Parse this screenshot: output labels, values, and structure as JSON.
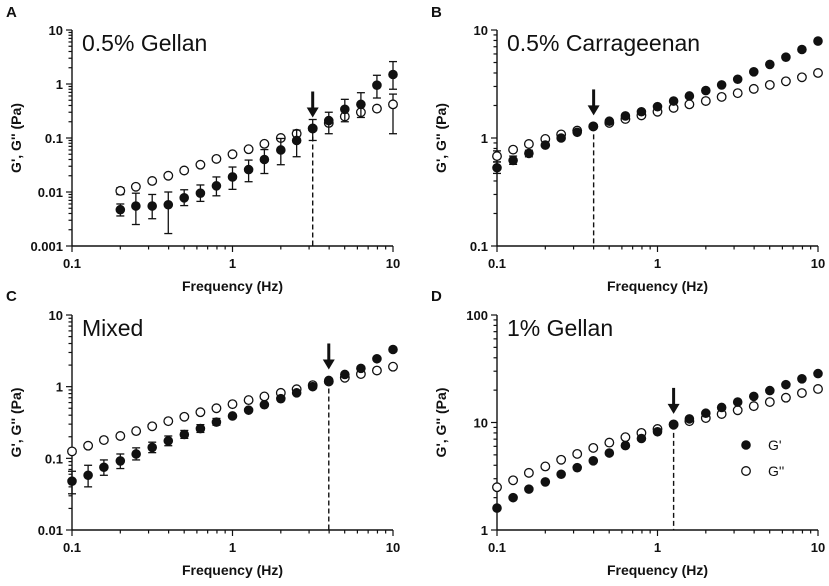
{
  "chart_data": [
    {
      "type": "scatter",
      "panel_label": "A",
      "title": "0.5% Gellan",
      "xlabel": "Frequency (Hz)",
      "ylabel": "G', G'' (Pa)",
      "xscale": "log",
      "yscale": "log",
      "xlim": [
        0.1,
        10
      ],
      "ylim": [
        0.001,
        10
      ],
      "xtick_labels": [
        "0.1",
        "1",
        "10"
      ],
      "ytick_labels": [
        "0.001",
        "0.01",
        "0.1",
        "1",
        "10"
      ],
      "crossover_frequency": 3.16,
      "series": [
        {
          "name": "G'",
          "marker": "filled",
          "x": [
            0.2,
            0.25,
            0.316,
            0.398,
            0.5,
            0.631,
            0.794,
            1.0,
            1.26,
            1.58,
            2.0,
            2.51,
            3.16,
            3.98,
            5.01,
            6.31,
            7.94,
            10.0
          ],
          "y": [
            0.0047,
            0.0055,
            0.0055,
            0.0058,
            0.0078,
            0.0095,
            0.013,
            0.019,
            0.026,
            0.04,
            0.06,
            0.09,
            0.15,
            0.21,
            0.34,
            0.42,
            0.95,
            1.5
          ],
          "err_low": [
            0.0036,
            0.0025,
            0.0032,
            0.0017,
            0.0056,
            0.0067,
            0.0085,
            0.0112,
            0.0155,
            0.022,
            0.032,
            0.045,
            0.09,
            0.12,
            0.2,
            0.24,
            0.55,
            0.8
          ],
          "err_high": [
            0.006,
            0.0095,
            0.009,
            0.01,
            0.011,
            0.0135,
            0.019,
            0.029,
            0.039,
            0.061,
            0.098,
            0.14,
            0.22,
            0.3,
            0.52,
            0.69,
            1.45,
            2.6
          ]
        },
        {
          "name": "G''",
          "marker": "open",
          "x": [
            0.2,
            0.25,
            0.316,
            0.398,
            0.5,
            0.631,
            0.794,
            1.0,
            1.26,
            1.58,
            2.0,
            2.51,
            3.16,
            3.98,
            5.01,
            6.31,
            7.94,
            10.0
          ],
          "y": [
            0.0105,
            0.0125,
            0.016,
            0.02,
            0.025,
            0.032,
            0.041,
            0.05,
            0.062,
            0.078,
            0.1,
            0.12,
            0.15,
            0.19,
            0.25,
            0.3,
            0.35,
            0.42
          ],
          "err_low": [
            0.009,
            null,
            null,
            null,
            null,
            null,
            null,
            null,
            null,
            null,
            null,
            null,
            null,
            null,
            null,
            null,
            null,
            0.12
          ],
          "err_high": [
            0.012,
            null,
            null,
            null,
            null,
            null,
            null,
            null,
            null,
            null,
            null,
            null,
            null,
            null,
            null,
            null,
            null,
            0.65
          ]
        }
      ]
    },
    {
      "type": "scatter",
      "panel_label": "B",
      "title": "0.5% Carrageenan",
      "xlabel": "Frequency (Hz)",
      "ylabel": "G', G'' (Pa)",
      "xscale": "log",
      "yscale": "log",
      "xlim": [
        0.1,
        10
      ],
      "ylim": [
        0.1,
        10
      ],
      "xtick_labels": [
        "0.1",
        "1",
        "10"
      ],
      "ytick_labels": [
        "0.1",
        "1",
        "10"
      ],
      "crossover_frequency": 0.4,
      "series": [
        {
          "name": "G'",
          "marker": "filled",
          "x": [
            0.1,
            0.126,
            0.158,
            0.2,
            0.251,
            0.316,
            0.398,
            0.501,
            0.631,
            0.794,
            1.0,
            1.26,
            1.58,
            2.0,
            2.51,
            3.16,
            3.98,
            5.01,
            6.31,
            7.94,
            10.0
          ],
          "y": [
            0.53,
            0.62,
            0.72,
            0.86,
            1.0,
            1.13,
            1.28,
            1.43,
            1.6,
            1.75,
            1.95,
            2.2,
            2.45,
            2.75,
            3.1,
            3.5,
            4.1,
            4.8,
            5.6,
            6.6,
            7.9
          ],
          "err_low": [
            0.47,
            0.57,
            0.67,
            null,
            null,
            null,
            null,
            null,
            null,
            null,
            null,
            null,
            null,
            null,
            null,
            null,
            null,
            null,
            null,
            null,
            null
          ],
          "err_high": [
            0.6,
            0.68,
            0.77,
            null,
            null,
            null,
            null,
            null,
            null,
            null,
            null,
            null,
            null,
            null,
            null,
            null,
            null,
            null,
            null,
            null,
            null
          ]
        },
        {
          "name": "G''",
          "marker": "open",
          "x": [
            0.1,
            0.126,
            0.158,
            0.2,
            0.251,
            0.316,
            0.398,
            0.501,
            0.631,
            0.794,
            1.0,
            1.26,
            1.58,
            2.0,
            2.51,
            3.16,
            3.98,
            5.01,
            6.31,
            7.94,
            10.0
          ],
          "y": [
            0.68,
            0.78,
            0.88,
            0.98,
            1.08,
            1.17,
            1.28,
            1.38,
            1.5,
            1.62,
            1.75,
            1.9,
            2.05,
            2.2,
            2.4,
            2.6,
            2.85,
            3.1,
            3.35,
            3.65,
            4.0
          ],
          "err_low": [
            0.6,
            null,
            null,
            null,
            null,
            null,
            null,
            null,
            null,
            null,
            null,
            null,
            null,
            null,
            null,
            null,
            null,
            null,
            null,
            null,
            null
          ],
          "err_high": [
            0.76,
            null,
            null,
            null,
            null,
            null,
            null,
            null,
            null,
            null,
            null,
            null,
            null,
            null,
            null,
            null,
            null,
            null,
            null,
            null,
            null
          ]
        }
      ]
    },
    {
      "type": "scatter",
      "panel_label": "C",
      "title": "Mixed",
      "xlabel": "Frequency (Hz)",
      "ylabel": "G', G'' (Pa)",
      "xscale": "log",
      "yscale": "log",
      "xlim": [
        0.1,
        10
      ],
      "ylim": [
        0.01,
        10
      ],
      "xtick_labels": [
        "0.1",
        "1",
        "10"
      ],
      "ytick_labels": [
        "0.01",
        "0.1",
        "1",
        "10"
      ],
      "crossover_frequency": 3.98,
      "series": [
        {
          "name": "G'",
          "marker": "filled",
          "x": [
            0.1,
            0.126,
            0.158,
            0.2,
            0.251,
            0.316,
            0.398,
            0.501,
            0.631,
            0.794,
            1.0,
            1.26,
            1.58,
            2.0,
            2.51,
            3.16,
            3.98,
            5.01,
            6.31,
            7.94,
            10.0
          ],
          "y": [
            0.048,
            0.058,
            0.075,
            0.092,
            0.115,
            0.142,
            0.175,
            0.215,
            0.26,
            0.32,
            0.39,
            0.47,
            0.56,
            0.68,
            0.82,
            1.0,
            1.22,
            1.48,
            1.8,
            2.45,
            3.3
          ],
          "err_low": [
            0.032,
            0.04,
            0.058,
            0.072,
            0.095,
            0.12,
            0.15,
            0.19,
            0.23,
            0.29,
            null,
            null,
            null,
            null,
            null,
            null,
            null,
            null,
            null,
            null,
            null
          ],
          "err_high": [
            0.066,
            0.08,
            0.095,
            0.115,
            0.14,
            0.168,
            0.205,
            0.245,
            0.295,
            0.36,
            null,
            null,
            null,
            null,
            null,
            null,
            null,
            null,
            null,
            null,
            null
          ]
        },
        {
          "name": "G''",
          "marker": "open",
          "x": [
            0.1,
            0.126,
            0.158,
            0.2,
            0.251,
            0.316,
            0.398,
            0.501,
            0.631,
            0.794,
            1.0,
            1.26,
            1.58,
            2.0,
            2.51,
            3.16,
            3.98,
            5.01,
            6.31,
            7.94,
            10.0
          ],
          "y": [
            0.125,
            0.15,
            0.18,
            0.205,
            0.24,
            0.28,
            0.33,
            0.38,
            0.44,
            0.5,
            0.57,
            0.65,
            0.73,
            0.82,
            0.92,
            1.05,
            1.18,
            1.33,
            1.5,
            1.68,
            1.9
          ],
          "err_low": [],
          "err_high": []
        }
      ]
    },
    {
      "type": "scatter",
      "panel_label": "D",
      "title": "1% Gellan",
      "xlabel": "Frequency (Hz)",
      "ylabel": "G', G'' (Pa)",
      "xscale": "log",
      "yscale": "log",
      "xlim": [
        0.1,
        10
      ],
      "ylim": [
        1,
        100
      ],
      "xtick_labels": [
        "0.1",
        "1",
        "10"
      ],
      "ytick_labels": [
        "1",
        "10",
        "100"
      ],
      "crossover_frequency": 1.26,
      "legend": {
        "position": "bottom-right",
        "entries": [
          {
            "label": "G'",
            "marker": "filled"
          },
          {
            "label": "G''",
            "marker": "open"
          }
        ]
      },
      "series": [
        {
          "name": "G'",
          "marker": "filled",
          "x": [
            0.1,
            0.126,
            0.158,
            0.2,
            0.251,
            0.316,
            0.398,
            0.501,
            0.631,
            0.794,
            1.0,
            1.26,
            1.58,
            2.0,
            2.51,
            3.16,
            3.98,
            5.01,
            6.31,
            7.94,
            10.0
          ],
          "y": [
            1.6,
            2.0,
            2.4,
            2.8,
            3.3,
            3.8,
            4.4,
            5.2,
            6.1,
            7.1,
            8.2,
            9.5,
            10.8,
            12.2,
            13.8,
            15.5,
            17.5,
            19.8,
            22.5,
            25.5,
            28.5
          ],
          "err_low": [],
          "err_high": []
        },
        {
          "name": "G''",
          "marker": "open",
          "x": [
            0.1,
            0.126,
            0.158,
            0.2,
            0.251,
            0.316,
            0.398,
            0.501,
            0.631,
            0.794,
            1.0,
            1.26,
            1.58,
            2.0,
            2.51,
            3.16,
            3.98,
            5.01,
            6.31,
            7.94,
            10.0
          ],
          "y": [
            2.5,
            2.9,
            3.4,
            3.9,
            4.5,
            5.1,
            5.8,
            6.5,
            7.3,
            8.0,
            8.7,
            9.6,
            10.3,
            11.0,
            12.0,
            13.0,
            14.2,
            15.5,
            17.0,
            18.8,
            20.5
          ],
          "err_low": [],
          "err_high": []
        }
      ]
    }
  ]
}
